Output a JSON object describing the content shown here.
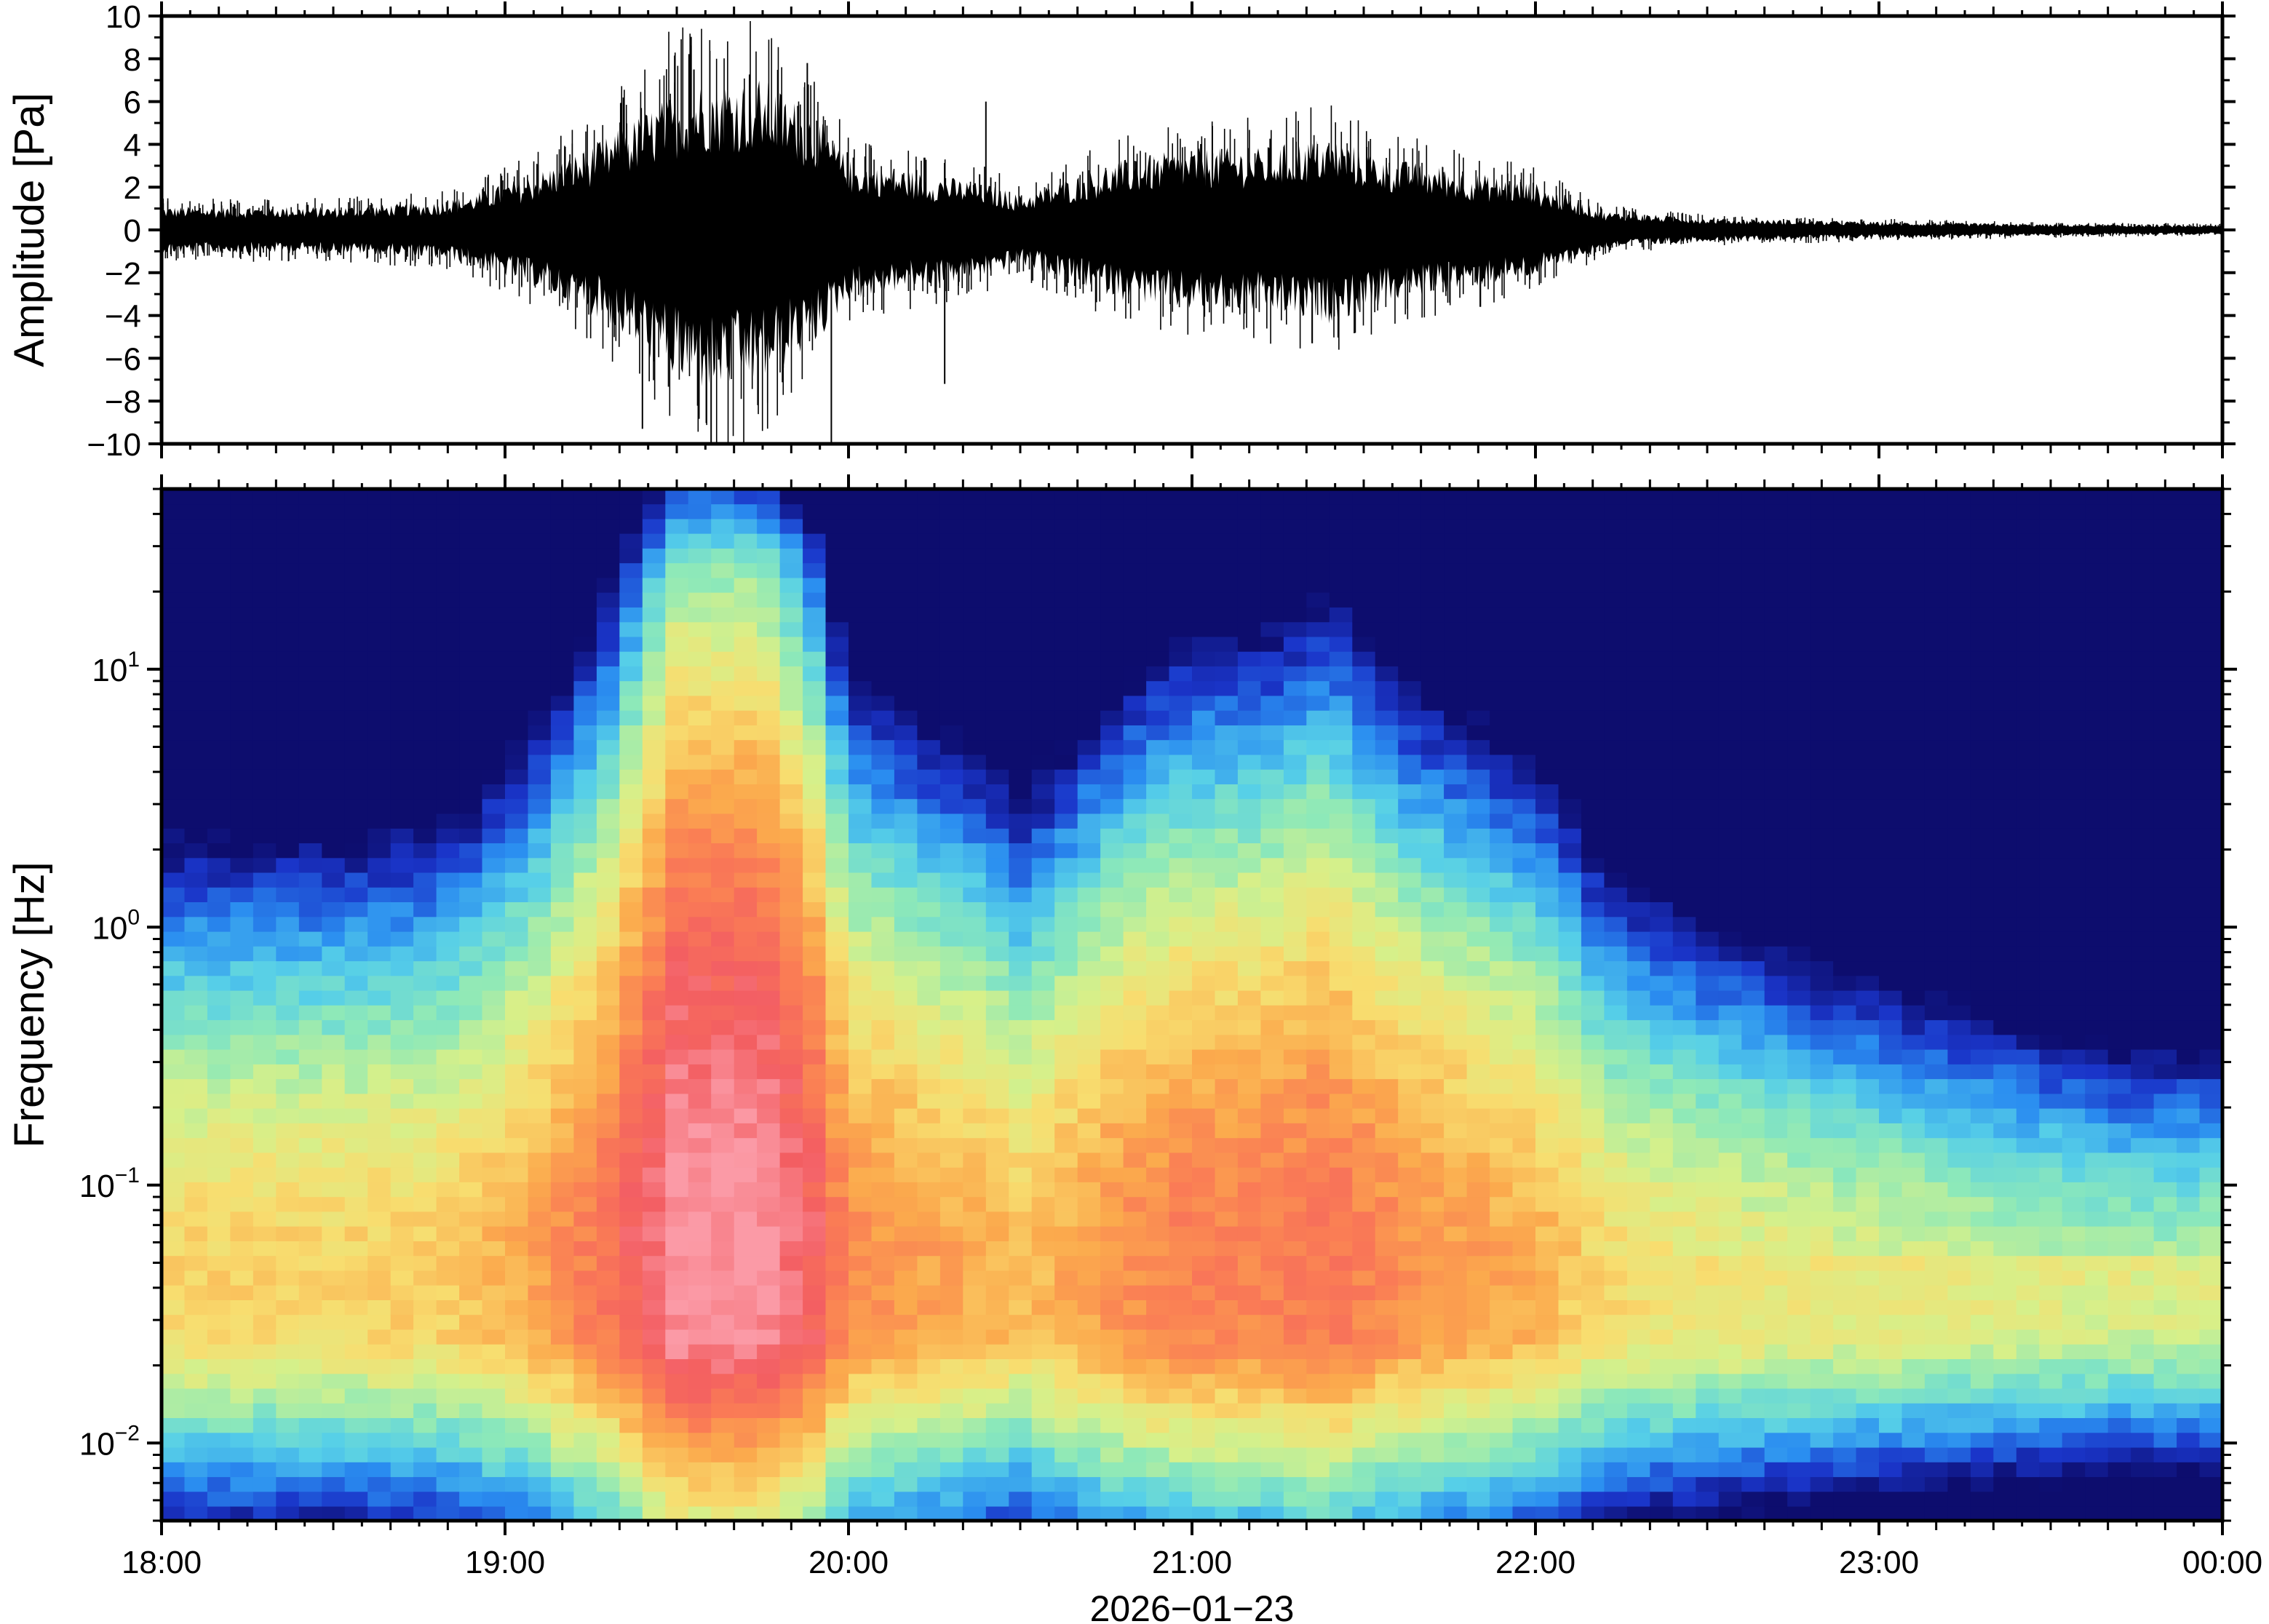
{
  "chart_data": [
    {
      "type": "line",
      "panel": "waveform",
      "ylabel": "Amplitude [Pa]",
      "xlabel": "",
      "ylim": [
        -10,
        10
      ],
      "yticks": [
        10,
        8,
        6,
        4,
        2,
        0,
        -2,
        -4,
        -6,
        -8,
        -10
      ],
      "ytick_labels": [
        "10",
        "8",
        "6",
        "4",
        "2",
        "0",
        "−2",
        "−4",
        "−6",
        "−8",
        "−10"
      ],
      "envelope": {
        "x_hours": [
          0.0,
          0.5,
          0.8,
          0.9,
          1.0,
          1.1,
          1.3,
          1.5,
          1.6,
          1.75,
          1.9,
          2.0,
          2.2,
          2.4,
          2.5,
          2.6,
          2.8,
          3.0,
          3.2,
          3.4,
          3.6,
          3.8,
          4.0,
          4.2,
          4.5,
          5.0,
          5.5,
          6.0
        ],
        "upper": [
          1.0,
          1.0,
          1.2,
          1.5,
          2.0,
          2.5,
          4.0,
          6.0,
          6.5,
          6.5,
          5.0,
          3.0,
          2.5,
          2.0,
          1.5,
          2.0,
          3.0,
          3.5,
          3.5,
          4.0,
          3.0,
          2.5,
          2.0,
          0.8,
          0.5,
          0.35,
          0.25,
          0.2
        ],
        "lower": [
          -1.0,
          -1.0,
          -1.2,
          -1.5,
          -2.0,
          -2.5,
          -4.0,
          -6.5,
          -7.0,
          -6.5,
          -5.0,
          -3.0,
          -2.5,
          -2.0,
          -1.5,
          -2.0,
          -3.0,
          -3.5,
          -3.5,
          -4.0,
          -3.0,
          -2.5,
          -2.0,
          -0.8,
          -0.5,
          -0.35,
          -0.25,
          -0.2
        ]
      },
      "peaks": [
        {
          "x_hours": 1.55,
          "y": 7.5
        },
        {
          "x_hours": 1.88,
          "y": 7.8
        },
        {
          "x_hours": 2.4,
          "y": 6.0
        },
        {
          "x_hours": 1.4,
          "y": -9.3
        },
        {
          "x_hours": 1.6,
          "y": -10.0
        },
        {
          "x_hours": 1.95,
          "y": -10.0
        },
        {
          "x_hours": 2.28,
          "y": -7.2
        },
        {
          "x_hours": 3.35,
          "y": -5.3
        }
      ]
    },
    {
      "type": "heatmap",
      "panel": "spectrogram",
      "ylabel": "Frequency [Hz]",
      "xlabel": "2026−01−23",
      "y_scale": "log",
      "ylim": [
        0.005,
        50
      ],
      "yticks": [
        {
          "value": 10,
          "base": "10",
          "exp": "1"
        },
        {
          "value": 1,
          "base": "10",
          "exp": "0"
        },
        {
          "value": 0.1,
          "base": "10",
          "exp": "−1"
        },
        {
          "value": 0.01,
          "base": "10",
          "exp": "−2"
        }
      ],
      "xlim_hours": [
        0,
        6
      ],
      "xticks": [
        {
          "hours": 0,
          "label": "18:00"
        },
        {
          "hours": 1,
          "label": "19:00"
        },
        {
          "hours": 2,
          "label": "20:00"
        },
        {
          "hours": 3,
          "label": "21:00"
        },
        {
          "hours": 4,
          "label": "22:00"
        },
        {
          "hours": 5,
          "label": "23:00"
        },
        {
          "hours": 6,
          "label": "00:00"
        }
      ],
      "colormap": [
        "#0d0d6e",
        "#1a35c9",
        "#2a8df0",
        "#56cfe8",
        "#8ee9b8",
        "#d6f08a",
        "#f8dd6f",
        "#fbaa4d",
        "#fa7c55",
        "#f35e62",
        "#fb9aa6"
      ],
      "colormap_range": [
        0,
        1
      ]
    }
  ]
}
